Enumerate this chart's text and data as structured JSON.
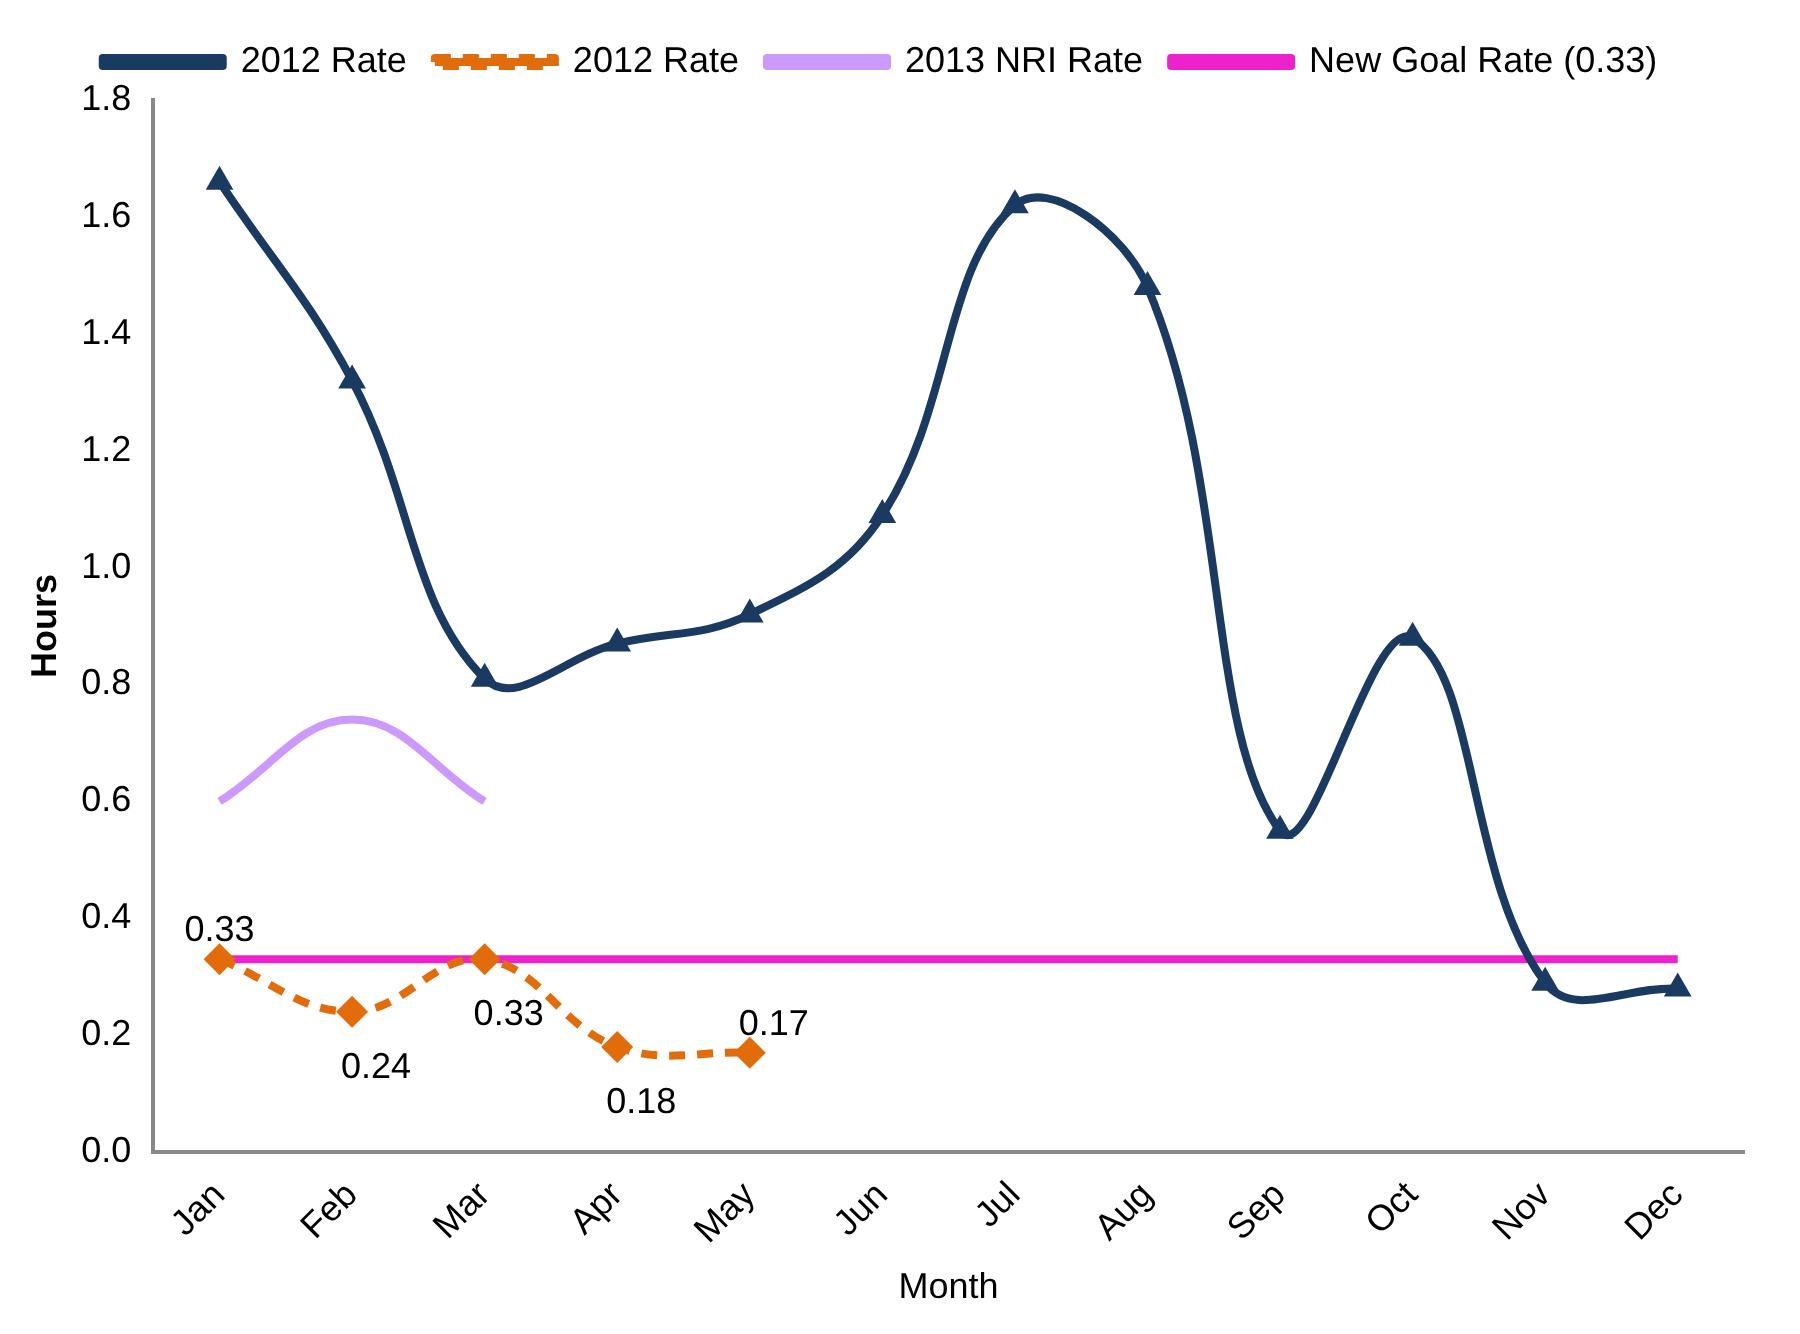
{
  "chart_data": {
    "type": "line",
    "xlabel": "Month",
    "ylabel": "Hours",
    "categories": [
      "Jan",
      "Feb",
      "Mar",
      "Apr",
      "May",
      "Jun",
      "Jul",
      "Aug",
      "Sep",
      "Oct",
      "Nov",
      "Dec"
    ],
    "series": [
      {
        "name": "2012 Rate",
        "color": "#1b3a61",
        "marker": "triangle",
        "line_style": "solid",
        "values": [
          1.66,
          1.32,
          0.81,
          0.87,
          0.92,
          1.09,
          1.62,
          1.48,
          0.55,
          0.88,
          0.29,
          0.28
        ]
      },
      {
        "name": "2012 Rate",
        "color": "#e36c0a",
        "marker": "diamond",
        "line_style": "dashed",
        "values": [
          0.33,
          0.24,
          0.33,
          0.18,
          0.17,
          null,
          null,
          null,
          null,
          null,
          null,
          null
        ],
        "value_labels": [
          "0.33",
          "0.24",
          "0.33",
          "0.18",
          "0.17",
          null,
          null,
          null,
          null,
          null,
          null,
          null
        ]
      },
      {
        "name": "2013 NRI Rate",
        "color": "#cc99ff",
        "marker": "none",
        "line_style": "solid",
        "values": [
          0.6,
          0.74,
          0.6,
          null,
          null,
          null,
          null,
          null,
          null,
          null,
          null,
          null
        ]
      },
      {
        "name": "New Goal Rate (0.33)",
        "color": "#ee22cc",
        "marker": "none",
        "line_style": "solid",
        "values": [
          0.33,
          0.33,
          0.33,
          0.33,
          0.33,
          0.33,
          0.33,
          0.33,
          0.33,
          0.33,
          0.33,
          0.33
        ]
      }
    ],
    "ylim": [
      0,
      1.8
    ],
    "yticks": [
      {
        "value": 0,
        "label": "0.0"
      },
      {
        "value": 0.2,
        "label": "0.2"
      },
      {
        "value": 0.4,
        "label": "0.4"
      },
      {
        "value": 0.6,
        "label": "0.6"
      },
      {
        "value": 0.8,
        "label": "0.8"
      },
      {
        "value": 1,
        "label": "1.0"
      },
      {
        "value": 1.2,
        "label": "1.2"
      },
      {
        "value": 1.4,
        "label": "1.4"
      },
      {
        "value": 1.6,
        "label": "1.6"
      },
      {
        "value": 1.8,
        "label": "1.8"
      }
    ],
    "grid": false,
    "legend": "top"
  }
}
